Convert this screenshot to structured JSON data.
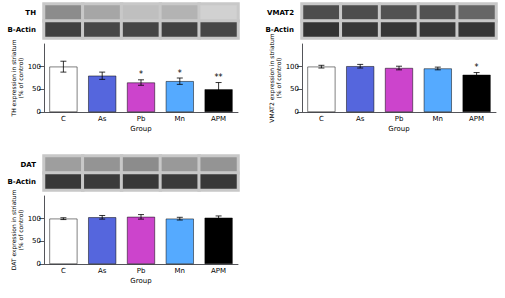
{
  "chart_data": [
    {
      "type": "heatmap",
      "rows": [
        "TH",
        "B-Actin"
      ],
      "cells": [
        [
          0.55,
          0.65,
          0.75,
          0.7,
          0.82
        ],
        [
          0.25,
          0.28,
          0.27,
          0.26,
          0.28
        ]
      ],
      "cell_range": [
        0,
        1
      ]
    },
    {
      "type": "bar",
      "categories": [
        "C",
        "As",
        "Pb",
        "Mn",
        "APM"
      ],
      "values": [
        100,
        80,
        65,
        68,
        50
      ],
      "errors": [
        12,
        8,
        6,
        7,
        15
      ],
      "colors": [
        "white",
        "#5566dd",
        "#cc44cc",
        "#55aaff",
        "black"
      ],
      "edge_color": "black",
      "annotations": [
        null,
        null,
        "*",
        "*",
        "**"
      ],
      "xlabel": "Group",
      "ylabel": "TH expression in striatum\n(% of control)",
      "ylim": [
        0,
        150
      ],
      "yticks": [
        0,
        50,
        100
      ],
      "grid": false
    },
    {
      "type": "heatmap",
      "rows": [
        "VMAT2",
        "B-Actin"
      ],
      "cells": [
        [
          0.3,
          0.3,
          0.32,
          0.32,
          0.4
        ],
        [
          0.2,
          0.22,
          0.21,
          0.22,
          0.21
        ]
      ],
      "cell_range": [
        0,
        1
      ]
    },
    {
      "type": "bar",
      "categories": [
        "C",
        "As",
        "Pb",
        "Mn",
        "APM"
      ],
      "values": [
        100,
        101,
        97,
        96,
        82
      ],
      "errors": [
        3,
        4,
        4,
        3,
        5
      ],
      "colors": [
        "white",
        "#5566dd",
        "#cc44cc",
        "#55aaff",
        "black"
      ],
      "edge_color": "black",
      "annotations": [
        null,
        null,
        null,
        null,
        "*"
      ],
      "xlabel": "Group",
      "ylabel": "VMAT2 expression in striatum\n(% of control)",
      "ylim": [
        0,
        150
      ],
      "yticks": [
        0,
        50,
        100
      ],
      "grid": false
    },
    {
      "type": "heatmap",
      "rows": [
        "DAT",
        "B-Actin"
      ],
      "cells": [
        [
          0.62,
          0.58,
          0.55,
          0.6,
          0.58
        ],
        [
          0.22,
          0.23,
          0.22,
          0.23,
          0.22
        ]
      ],
      "cell_range": [
        0,
        1
      ]
    },
    {
      "type": "bar",
      "categories": [
        "C",
        "As",
        "Pb",
        "Mn",
        "APM"
      ],
      "values": [
        100,
        103,
        104,
        100,
        102
      ],
      "errors": [
        2,
        4,
        5,
        3,
        4
      ],
      "colors": [
        "white",
        "#5566dd",
        "#cc44cc",
        "#55aaff",
        "black"
      ],
      "edge_color": "black",
      "xlabel": "Group",
      "ylabel": "DAT expression in striatum\n(% of control)",
      "ylim": [
        0,
        150
      ],
      "yticks": [
        0,
        50,
        100
      ],
      "grid": false
    }
  ]
}
